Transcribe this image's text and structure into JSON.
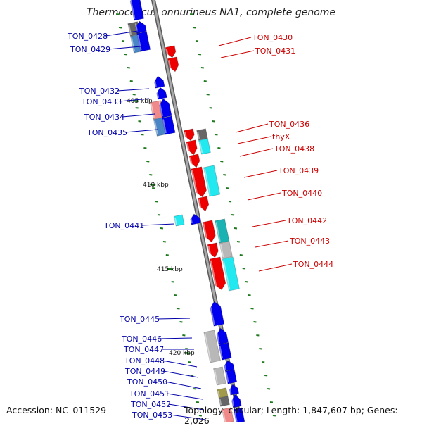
{
  "title": "Thermococcus onnurineus NA1, complete genome",
  "accession": "Accession: NC_011529",
  "topology": "Topology: circular; Length: 1,847,607 bp; Genes: 2,026",
  "colors": {
    "backbone": "#8a8a8a",
    "gene_forward": "#0000ee",
    "gene_reverse": "#ee0000",
    "label_forward": "#0000aa",
    "label_reverse": "#cc0000",
    "tick": "#1e7a1e",
    "feature_grey": "#b8b8b8",
    "feature_darkgrey": "#666666",
    "feature_steel": "#4a86c5",
    "feature_pink": "#f08a8a",
    "feature_cyan": "#22e8f0",
    "feature_teal": "#1ab2b2",
    "feature_olive": "#a09a4a"
  },
  "scale_labels": [
    "405 kbp",
    "410 kbp",
    "415 kbp",
    "420 kbp"
  ],
  "left_genes": [
    "TON_0428",
    "TON_0429",
    "TON_0432",
    "TON_0433",
    "TON_0434",
    "TON_0435",
    "TON_0441",
    "TON_0445",
    "TON_0446",
    "TON_0447",
    "TON_0448",
    "TON_0449",
    "TON_0450",
    "TON_0451",
    "TON_0452",
    "TON_0453"
  ],
  "right_genes": [
    "TON_0430",
    "TON_0431",
    "TON_0436",
    "thyX",
    "TON_0438",
    "TON_0439",
    "TON_0440",
    "TON_0442",
    "TON_0443",
    "TON_0444"
  ]
}
